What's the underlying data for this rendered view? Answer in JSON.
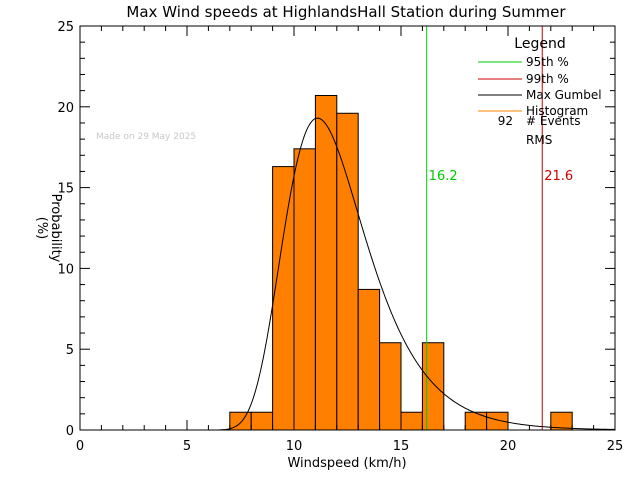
{
  "chart_data": {
    "type": "bar",
    "title": "Max Wind speeds at HighlandsHall Station during Summer",
    "xlabel": "Windspeed (km/h)",
    "ylabel_line1": "Probability",
    "ylabel_line2": "(%)",
    "xlim": [
      0,
      25
    ],
    "ylim": [
      0,
      25
    ],
    "x_major_ticks": [
      0,
      5,
      10,
      15,
      20,
      25
    ],
    "y_major_ticks": [
      0,
      5,
      10,
      15,
      20,
      25
    ],
    "x_minor_step": 1,
    "y_minor_step": 1,
    "watermark": "Made on 29 May 2025",
    "legend": {
      "title": "Legend",
      "entries": [
        {
          "label": "95th %",
          "color": "#00cc00"
        },
        {
          "label": "99th %",
          "color": "#cc0000"
        },
        {
          "label": "Max Gumbel",
          "color": "#000000"
        },
        {
          "label": "Histogram",
          "color": "#ff8000"
        }
      ],
      "events_count": "92",
      "events_label": "# Events",
      "rms_label": "RMS"
    },
    "histogram": {
      "bin_width": 1,
      "color": "#ff7f00",
      "bins": [
        {
          "x": 7,
          "value": 1.1
        },
        {
          "x": 8,
          "value": 1.1
        },
        {
          "x": 9,
          "value": 16.3
        },
        {
          "x": 10,
          "value": 17.4
        },
        {
          "x": 11,
          "value": 20.7
        },
        {
          "x": 12,
          "value": 19.6
        },
        {
          "x": 13,
          "value": 8.7
        },
        {
          "x": 14,
          "value": 5.4
        },
        {
          "x": 15,
          "value": 1.1
        },
        {
          "x": 16,
          "value": 5.4
        },
        {
          "x": 17,
          "value": 0.0
        },
        {
          "x": 18,
          "value": 1.1
        },
        {
          "x": 19,
          "value": 1.1
        },
        {
          "x": 20,
          "value": 0.0
        },
        {
          "x": 21,
          "value": 0.0
        },
        {
          "x": 22,
          "value": 1.1
        }
      ]
    },
    "gumbel": {
      "mode": 11.1,
      "scale": 1.9,
      "peak": 19.3,
      "x_range": [
        6.5,
        25
      ],
      "color": "#000000"
    },
    "percentiles": [
      {
        "name": "95th %",
        "value": 16.2,
        "label": "16.2",
        "color": "#00cc00"
      },
      {
        "name": "99th %",
        "value": 21.6,
        "label": "21.6",
        "color": "#cc0000"
      }
    ]
  }
}
